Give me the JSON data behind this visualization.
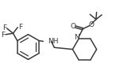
{
  "bg_color": "#ffffff",
  "line_color": "#3a3a3a",
  "line_width": 1.1,
  "font_size": 6.5,
  "xlim": [
    0,
    10
  ],
  "ylim": [
    0.5,
    7.0
  ]
}
